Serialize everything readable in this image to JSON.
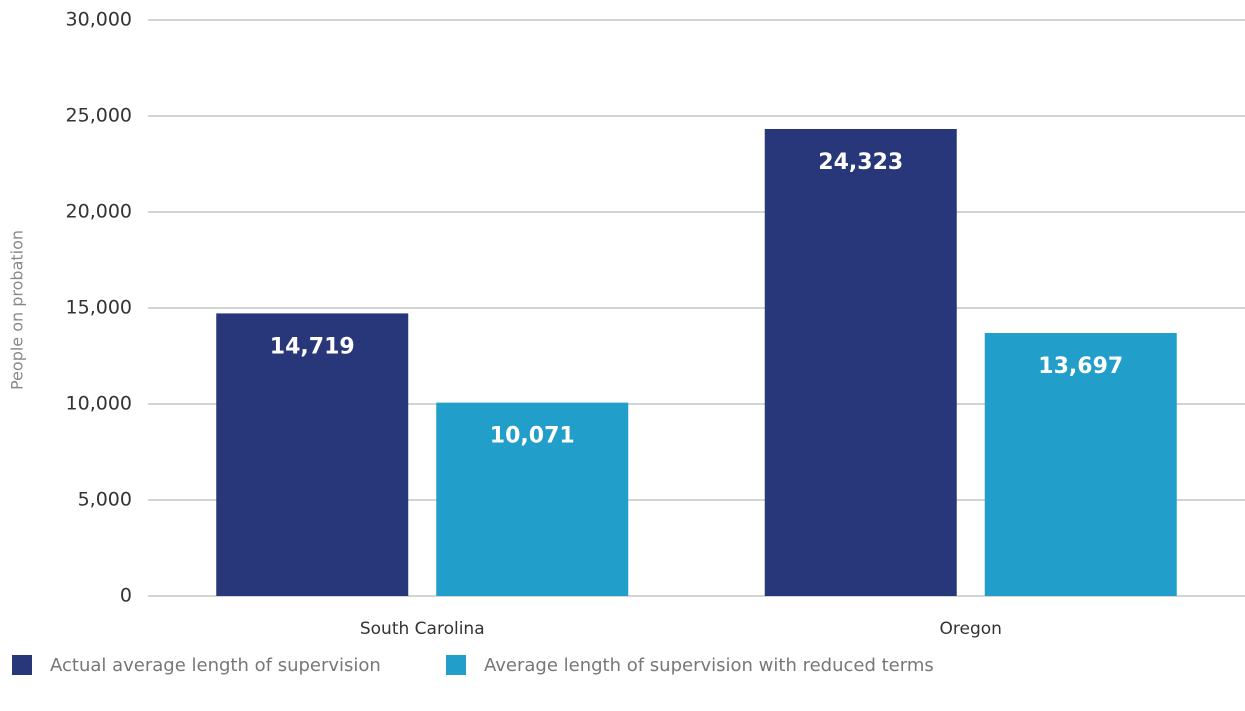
{
  "chart_data": {
    "type": "bar",
    "y_label": "People on probation",
    "categories": [
      "South Carolina",
      "Oregon"
    ],
    "series": [
      {
        "name": "Actual average length of supervision",
        "color": "#283779",
        "values": [
          14719,
          24323
        ],
        "value_labels": [
          "14,719",
          "24,323"
        ]
      },
      {
        "name": "Average length of supervision with reduced terms",
        "color": "#219ec9",
        "values": [
          10071,
          13697
        ],
        "value_labels": [
          "10,071",
          "13,697"
        ]
      }
    ],
    "ylim": [
      0,
      30000
    ],
    "yticks": [
      0,
      {
        "value": 5000,
        "label": "5,000"
      },
      {
        "value": 10000,
        "label": "10,000"
      },
      {
        "value": 15000,
        "label": "15,000"
      },
      {
        "value": 20000,
        "label": "20,000"
      },
      {
        "value": 25000,
        "label": "25,000"
      },
      {
        "value": 30000,
        "label": "30,000"
      }
    ],
    "grid": true
  }
}
